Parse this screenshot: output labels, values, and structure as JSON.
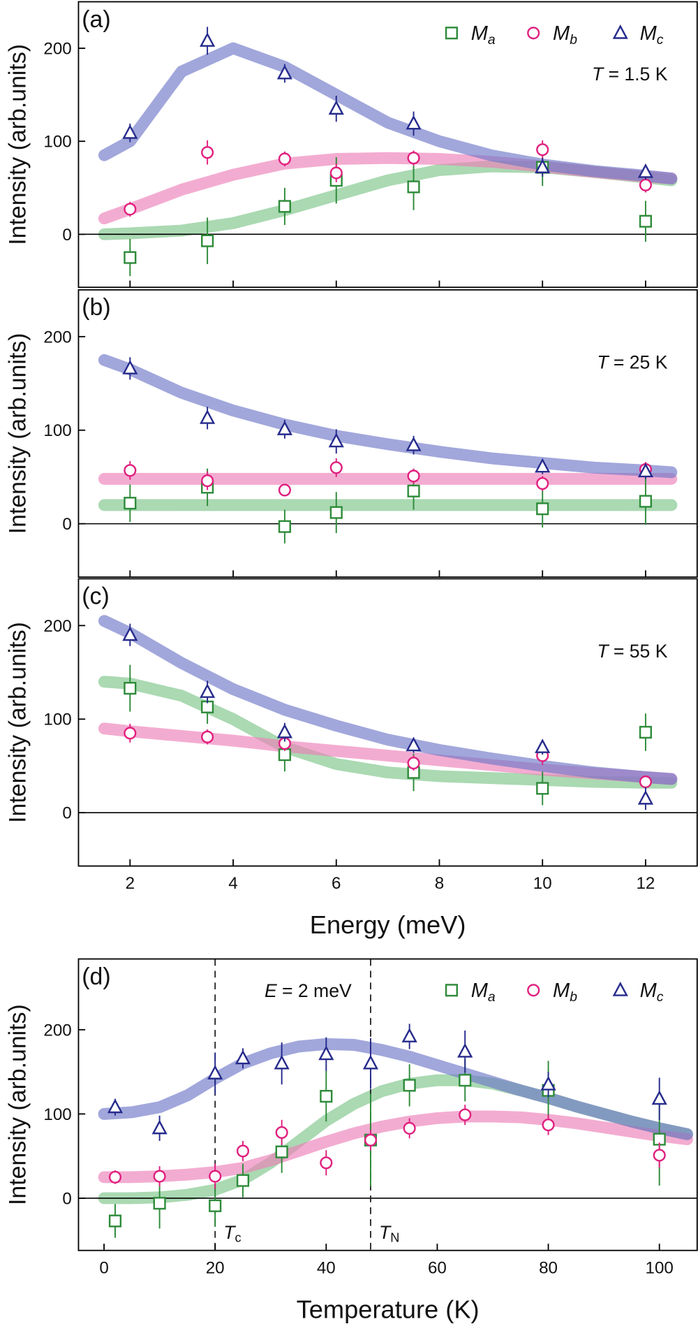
{
  "chart_data": [
    {
      "type": "scatter",
      "panel": "(a)",
      "ylabel": "Intensity (arb.units)",
      "annotation": {
        "symbol": "T",
        "text": "= 1.5 K"
      },
      "xlim": [
        1,
        13
      ],
      "xticks": [
        2,
        4,
        6,
        8,
        10,
        12
      ],
      "xtick_labels": false,
      "ylim": [
        -57,
        250
      ],
      "yticks": [
        0,
        100,
        200
      ],
      "hline": 0,
      "x": [
        2,
        3.5,
        5,
        6,
        7.5,
        10,
        12
      ],
      "series": [
        {
          "name": "M",
          "sub": "a",
          "marker": "square",
          "color": "#2e8b3a",
          "fit_color": "#7cc489",
          "values": [
            -25,
            -7,
            30,
            58,
            51,
            72,
            14
          ],
          "errors": [
            20,
            25,
            20,
            25,
            25,
            20,
            22
          ],
          "fit": {
            "x": [
              1.5,
              2,
              3,
              4,
              5,
              6,
              7,
              8,
              9,
              10,
              11,
              12,
              12.5
            ],
            "values": [
              0,
              1,
              4,
              12,
              26,
              42,
              58,
              69,
              73,
              72,
              67,
              61,
              58
            ]
          }
        },
        {
          "name": "M",
          "sub": "b",
          "marker": "circle",
          "color": "#e0207f",
          "fit_color": "#ec80b8",
          "values": [
            27,
            88,
            81,
            66,
            82,
            91,
            53
          ],
          "errors": [
            8,
            13,
            8,
            10,
            8,
            10,
            8
          ],
          "fit": {
            "x": [
              1.5,
              2,
              3,
              4,
              5,
              6,
              7,
              8,
              9,
              10,
              11,
              12,
              12.5
            ],
            "values": [
              17,
              27,
              48,
              64,
              76,
              81,
              82,
              81,
              78,
              73,
              67,
              62,
              60
            ]
          }
        },
        {
          "name": "M",
          "sub": "c",
          "marker": "triangle",
          "color": "#262b8c",
          "fit_color": "#6f78c8",
          "values": [
            109,
            208,
            173,
            135,
            119,
            72,
            67
          ],
          "errors": [
            10,
            15,
            10,
            14,
            13,
            10,
            8
          ],
          "fit": {
            "x": [
              1.5,
              2,
              3,
              4,
              5,
              6,
              7,
              8,
              9,
              10,
              11,
              12,
              12.5
            ],
            "values": [
              85,
              100,
              175,
              200,
              180,
              150,
              120,
              100,
              85,
              75,
              68,
              63,
              60
            ]
          }
        }
      ]
    },
    {
      "type": "scatter",
      "panel": "(b)",
      "ylabel": "Intensity (arb.units)",
      "annotation": {
        "symbol": "T",
        "text": "= 25 K"
      },
      "xlim": [
        1,
        13
      ],
      "xticks": [
        2,
        4,
        6,
        8,
        10,
        12
      ],
      "xtick_labels": false,
      "ylim": [
        -57,
        250
      ],
      "yticks": [
        0,
        100,
        200
      ],
      "hline": 0,
      "x": [
        2,
        3.5,
        5,
        6,
        7.5,
        10,
        12
      ],
      "series": [
        {
          "marker": "square",
          "color": "#2e8b3a",
          "fit_color": "#7cc489",
          "values": [
            22,
            39,
            -3,
            12,
            35,
            16,
            24
          ],
          "errors": [
            20,
            20,
            18,
            22,
            20,
            20,
            25
          ],
          "fit": {
            "x": [
              1.5,
              2,
              3,
              4,
              5,
              6,
              7,
              8,
              9,
              10,
              11,
              12,
              12.5
            ],
            "values": [
              20,
              20,
              20,
              20,
              20,
              20,
              20,
              20,
              20,
              20,
              20,
              20,
              20
            ]
          }
        },
        {
          "marker": "circle",
          "color": "#e0207f",
          "fit_color": "#ec80b8",
          "values": [
            57,
            46,
            36,
            60,
            51,
            43,
            58
          ],
          "errors": [
            10,
            10,
            6,
            10,
            8,
            8,
            8
          ],
          "fit": {
            "x": [
              1.5,
              2,
              3,
              4,
              5,
              6,
              7,
              8,
              9,
              10,
              11,
              12,
              12.5
            ],
            "values": [
              48,
              48,
              48,
              48,
              48,
              48,
              48,
              48,
              48,
              48,
              48,
              48,
              48
            ]
          }
        },
        {
          "marker": "triangle",
          "color": "#262b8c",
          "fit_color": "#6f78c8",
          "values": [
            166,
            113,
            101,
            88,
            84,
            61,
            56
          ],
          "errors": [
            12,
            12,
            10,
            13,
            10,
            8,
            8
          ],
          "fit": {
            "x": [
              1.5,
              2,
              3,
              4,
              5,
              6,
              7,
              8,
              9,
              10,
              11,
              12,
              12.5
            ],
            "values": [
              175,
              165,
              140,
              121,
              106,
              94,
              85,
              77,
              70,
              65,
              60,
              57,
              55
            ]
          }
        }
      ]
    },
    {
      "type": "scatter",
      "panel": "(c)",
      "ylabel": "Intensity (arb.units)",
      "xlabel": "Energy (meV)",
      "annotation": {
        "symbol": "T",
        "text": "= 55 K"
      },
      "xlim": [
        1,
        13
      ],
      "xticks": [
        2,
        4,
        6,
        8,
        10,
        12
      ],
      "ylim": [
        -57,
        250
      ],
      "yticks": [
        0,
        100,
        200
      ],
      "hline": 0,
      "x": [
        2,
        3.5,
        5,
        7.5,
        10,
        12
      ],
      "series": [
        {
          "marker": "square",
          "color": "#2e8b3a",
          "fit_color": "#7cc489",
          "values": [
            133,
            113,
            62,
            43,
            26,
            86
          ],
          "errors": [
            25,
            18,
            18,
            20,
            18,
            20
          ],
          "fit": {
            "x": [
              1.5,
              2,
              3,
              4,
              5,
              6,
              7,
              8,
              9,
              10,
              11,
              12,
              12.5
            ],
            "values": [
              140,
              138,
              125,
              100,
              70,
              52,
              43,
              39,
              37,
              35,
              33,
              32,
              32
            ]
          }
        },
        {
          "marker": "circle",
          "color": "#e0207f",
          "fit_color": "#ec80b8",
          "values": [
            85,
            81,
            74,
            53,
            61,
            33
          ],
          "errors": [
            10,
            8,
            8,
            8,
            10,
            6
          ],
          "fit": {
            "x": [
              1.5,
              2,
              3,
              4,
              5,
              6,
              7,
              8,
              9,
              10,
              11,
              12,
              12.5
            ],
            "values": [
              90,
              87,
              82,
              77,
              71,
              66,
              61,
              56,
              51,
              46,
              42,
              38,
              36
            ]
          }
        },
        {
          "marker": "triangle",
          "color": "#262b8c",
          "fit_color": "#6f78c8",
          "values": [
            190,
            129,
            86,
            72,
            70,
            15
          ],
          "errors": [
            12,
            12,
            10,
            8,
            8,
            12
          ],
          "fit": {
            "x": [
              1.5,
              2,
              3,
              4,
              5,
              6,
              7,
              8,
              9,
              10,
              11,
              12,
              12.5
            ],
            "values": [
              205,
              192,
              160,
              132,
              110,
              93,
              78,
              67,
              58,
              50,
              43,
              38,
              36
            ]
          }
        }
      ]
    },
    {
      "type": "scatter",
      "panel": "(d)",
      "ylabel": "Intensity (arb.units)",
      "xlabel": "Temperature (K)",
      "annotation": {
        "symbol": "E",
        "text": "= 2 meV"
      },
      "xlim": [
        -4.6,
        106.8
      ],
      "xticks": [
        0,
        20,
        40,
        60,
        80,
        100
      ],
      "ylim": [
        -62,
        284
      ],
      "yticks": [
        0,
        100,
        200
      ],
      "hline": 0,
      "vlines": [
        {
          "value": 20,
          "symbol": "T",
          "sub": "c"
        },
        {
          "value": 48,
          "symbol": "T",
          "sub": "N"
        }
      ],
      "x": [
        2,
        10,
        20,
        25,
        32,
        40,
        48,
        55,
        65,
        80,
        100
      ],
      "series": [
        {
          "name": "M",
          "sub": "a",
          "marker": "square",
          "color": "#2e8b3a",
          "fit_color": "#7cc489",
          "values": [
            -27,
            -6,
            -9,
            21,
            55,
            121,
            69,
            134,
            140,
            128,
            70
          ],
          "errors": [
            20,
            30,
            25,
            20,
            25,
            30,
            55,
            25,
            25,
            35,
            55
          ],
          "fit": {
            "x": [
              0,
              5,
              10,
              15,
              20,
              25,
              30,
              35,
              40,
              45,
              50,
              55,
              60,
              65,
              70,
              75,
              80,
              85,
              90,
              95,
              100,
              105
            ],
            "values": [
              0,
              0,
              1,
              4,
              10,
              22,
              42,
              67,
              92,
              112,
              127,
              136,
              140,
              140,
              136,
              128,
              119,
              109,
              100,
              91,
              83,
              76
            ]
          }
        },
        {
          "name": "M",
          "sub": "b",
          "marker": "circle",
          "color": "#e0207f",
          "fit_color": "#ec80b8",
          "values": [
            25,
            26,
            26,
            56,
            78,
            42,
            69,
            83,
            99,
            87,
            51
          ],
          "errors": [
            8,
            12,
            15,
            12,
            15,
            15,
            12,
            12,
            12,
            12,
            15
          ],
          "fit": {
            "x": [
              0,
              5,
              10,
              15,
              20,
              25,
              30,
              35,
              40,
              45,
              50,
              55,
              60,
              65,
              70,
              75,
              80,
              85,
              90,
              95,
              100,
              105
            ],
            "values": [
              25,
              25,
              26,
              28,
              31,
              36,
              45,
              56,
              67,
              77,
              85,
              91,
              95,
              97,
              97,
              96,
              93,
              89,
              84,
              79,
              74,
              70
            ]
          }
        },
        {
          "name": "M",
          "sub": "c",
          "marker": "triangle",
          "color": "#262b8c",
          "fit_color": "#6f78c8",
          "values": [
            108,
            83,
            148,
            166,
            160,
            171,
            160,
            192,
            174,
            135,
            118
          ],
          "errors": [
            10,
            15,
            25,
            12,
            25,
            20,
            30,
            15,
            25,
            15,
            25
          ],
          "fit": {
            "x": [
              0,
              5,
              10,
              15,
              20,
              25,
              30,
              35,
              40,
              45,
              50,
              55,
              60,
              65,
              70,
              75,
              80,
              85,
              90,
              95,
              100,
              105
            ],
            "values": [
              100,
              102,
              108,
              122,
              142,
              160,
              172,
              180,
              183,
              182,
              176,
              168,
              158,
              148,
              138,
              128,
              119,
              109,
              100,
              91,
              83,
              76
            ]
          }
        }
      ]
    }
  ]
}
